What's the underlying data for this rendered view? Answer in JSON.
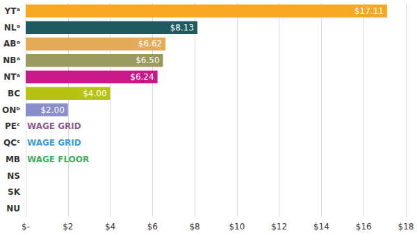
{
  "chart_data": {
    "type": "bar",
    "orientation": "horizontal",
    "categories": [
      "YTᵃ",
      "NLᵃ",
      "ABᵃ",
      "NBᵃ",
      "NTᵃ",
      "BC",
      "ONᵇ",
      "PEᶜ",
      "QCᶜ",
      "MB",
      "NS",
      "SK",
      "NU"
    ],
    "values": [
      17.11,
      8.13,
      6.62,
      6.5,
      6.24,
      4,
      2,
      null,
      null,
      null,
      null,
      null,
      null
    ],
    "value_labels": [
      "$17.11",
      "$8.13",
      "$6.62",
      "$6.50",
      "$6.24",
      "$4.00",
      "$2.00",
      null,
      null,
      null,
      null,
      null,
      null
    ],
    "colors": [
      "#f7a823",
      "#1e5a5f",
      "#e4ac58",
      "#999a5e",
      "#c8198a",
      "#b6c312",
      "#8a8fcb",
      null,
      null,
      null,
      null,
      null,
      null
    ],
    "xlim": [
      0,
      18
    ],
    "xticks": [
      {
        "value": 0,
        "label": "$-"
      },
      {
        "value": 2,
        "label": "$2"
      },
      {
        "value": 4,
        "label": "$4"
      },
      {
        "value": 6,
        "label": "$6"
      },
      {
        "value": 8,
        "label": "$8"
      },
      {
        "value": 10,
        "label": "$10"
      },
      {
        "value": 12,
        "label": "$12"
      },
      {
        "value": 14,
        "label": "$14"
      },
      {
        "value": 16,
        "label": "$16"
      },
      {
        "value": 18,
        "label": "$18"
      }
    ],
    "grid": true,
    "data_labels": true,
    "annotations": [
      {
        "category": "PEᶜ",
        "text": "WAGE GRID",
        "color": "#8e5b8f"
      },
      {
        "category": "QCᶜ",
        "text": "WAGE GRID",
        "color": "#3d9bd6"
      },
      {
        "category": "MB",
        "text": "WAGE FLOOR",
        "color": "#3cb05a"
      }
    ]
  }
}
